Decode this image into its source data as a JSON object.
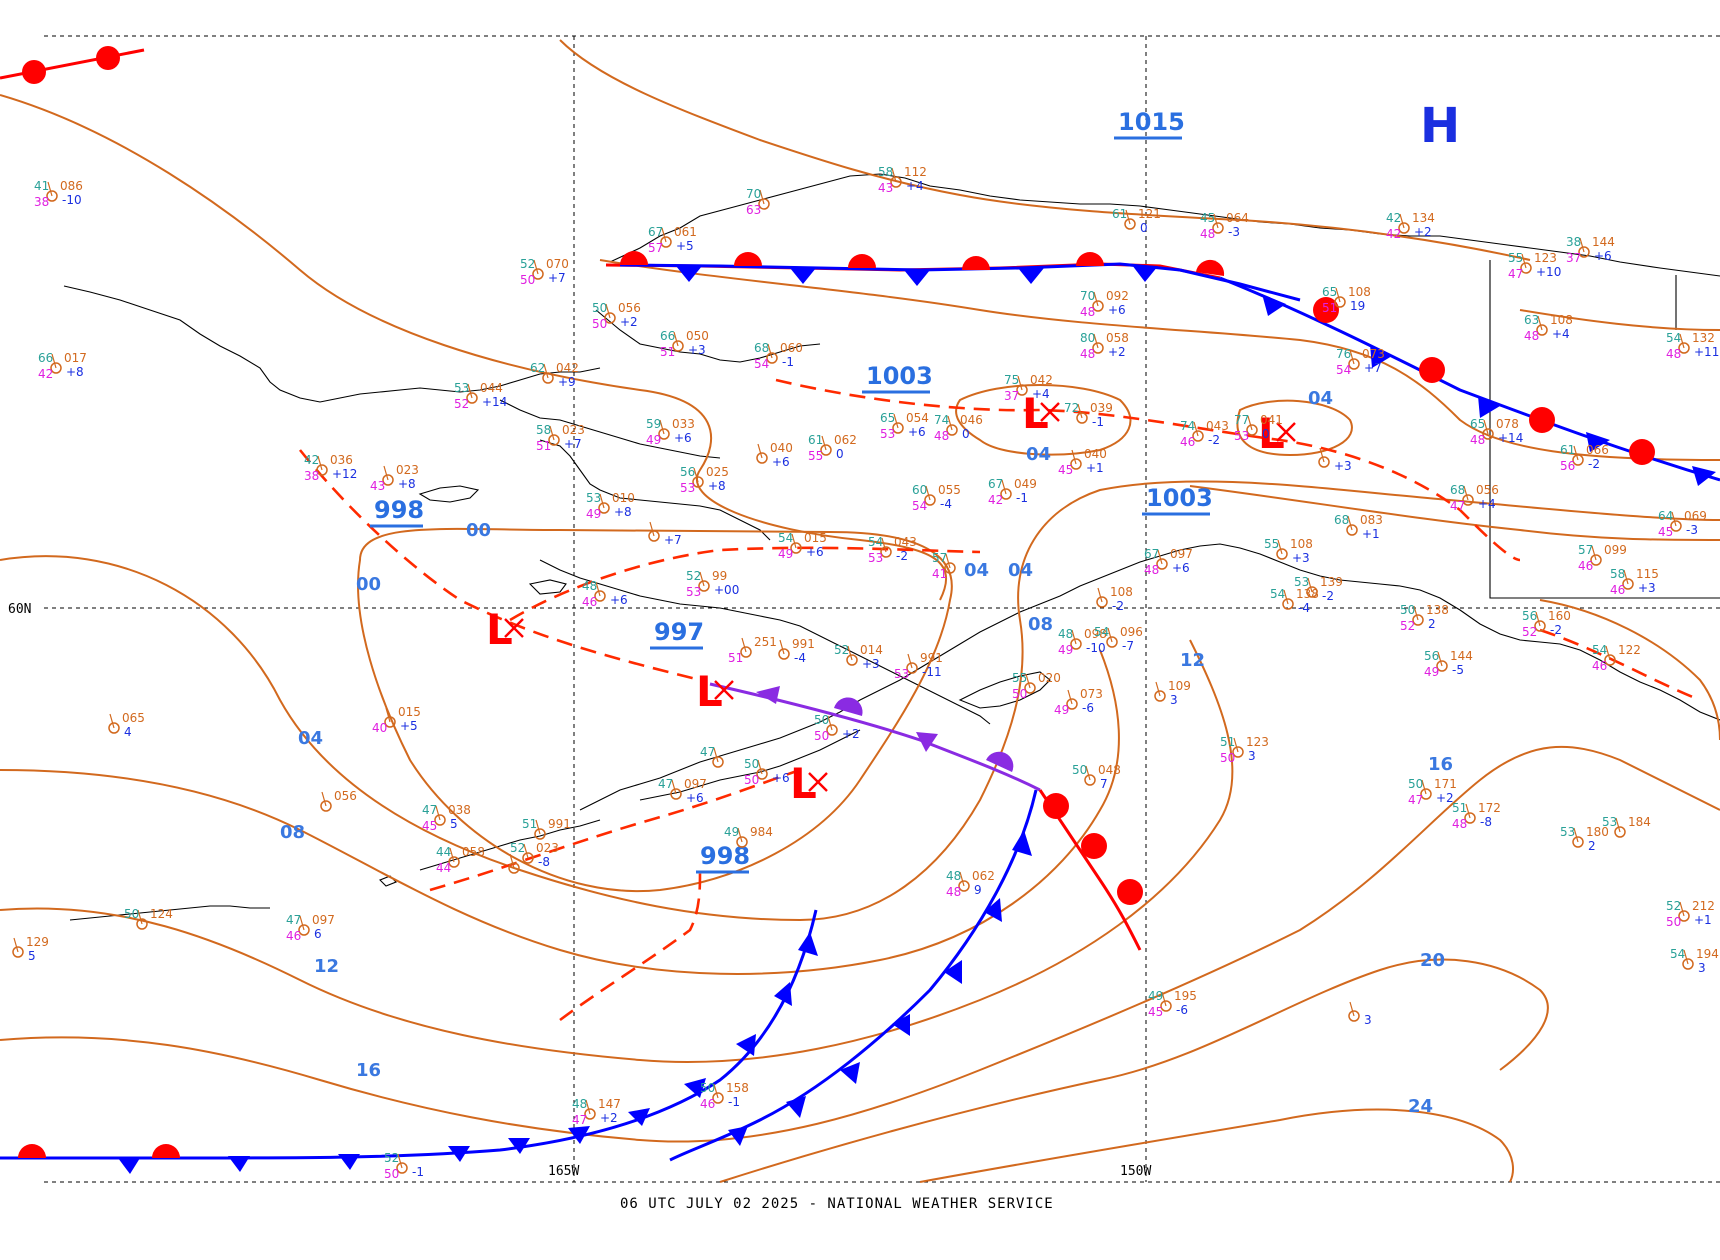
{
  "footer": "06 UTC JULY 02 2025 - NATIONAL WEATHER SERVICE",
  "axes": {
    "lat_label": "60N",
    "lon_labels": [
      "165W",
      "150W"
    ]
  },
  "pressure_centers": [
    {
      "type": "high",
      "symbol": "H"
    },
    {
      "type": "low",
      "symbol": "L",
      "pressure": "998"
    },
    {
      "type": "low",
      "symbol": "L",
      "pressure": "997"
    },
    {
      "type": "low",
      "symbol": "L",
      "pressure": "998"
    },
    {
      "type": "low",
      "symbol": "L",
      "pressure": "1003"
    },
    {
      "type": "low",
      "symbol": "L",
      "pressure": "1003"
    }
  ],
  "center_pressure_labels": [
    "1015",
    "1003",
    "998",
    "1003",
    "997",
    "998"
  ],
  "isobar_labels": [
    "00",
    "04",
    "08",
    "12",
    "16",
    "04",
    "04",
    "08",
    "12",
    "16",
    "20",
    "24",
    "04",
    "04",
    "00"
  ],
  "colors": {
    "isobar": "#d2691e",
    "cold_front": "#0000ff",
    "warm_front": "#ff0000",
    "occluded_front": "#8a2be2",
    "trough": "#ff2a00",
    "temperature": "#2aa198",
    "dewpoint": "#e020e0",
    "pressure_reading": "#d2691e",
    "tendency": "#1a2fe0"
  },
  "stations": [
    {
      "t": "41",
      "p": "086",
      "d": "38",
      "tend": "-10"
    },
    {
      "t": "66",
      "p": "017",
      "d": "42",
      "tend": "+8"
    },
    {
      "t": "52",
      "p": "070",
      "d": "50",
      "tend": "+7"
    },
    {
      "t": "67",
      "p": "061",
      "d": "57",
      "tend": "+5"
    },
    {
      "t": "70",
      "p": "",
      "d": "63",
      "tend": ""
    },
    {
      "t": "58",
      "p": "112",
      "d": "43",
      "tend": "+4"
    },
    {
      "t": "50",
      "p": "056",
      "d": "50",
      "tend": "+2"
    },
    {
      "t": "66",
      "p": "050",
      "d": "51",
      "tend": "+3"
    },
    {
      "t": "68",
      "p": "060",
      "d": "54",
      "tend": "-1"
    },
    {
      "t": "62",
      "p": "042",
      "d": "",
      "tend": "+9"
    },
    {
      "t": "53",
      "p": "044",
      "d": "52",
      "tend": "+14"
    },
    {
      "t": "58",
      "p": "023",
      "d": "51",
      "tend": "+7"
    },
    {
      "t": "59",
      "p": "033",
      "d": "49",
      "tend": "+6"
    },
    {
      "t": "42",
      "p": "036",
      "d": "38",
      "tend": "+12"
    },
    {
      "t": "",
      "p": "023",
      "d": "43",
      "tend": "+8"
    },
    {
      "t": "56",
      "p": "025",
      "d": "53",
      "tend": "+8"
    },
    {
      "t": "",
      "p": "040",
      "d": "",
      "tend": "+6"
    },
    {
      "t": "61",
      "p": "062",
      "d": "55",
      "tend": "0"
    },
    {
      "t": "65",
      "p": "054",
      "d": "53",
      "tend": "+6"
    },
    {
      "t": "74",
      "p": "046",
      "d": "48",
      "tend": "0"
    },
    {
      "t": "75",
      "p": "042",
      "d": "37",
      "tend": "+4"
    },
    {
      "t": "53",
      "p": "010",
      "d": "49",
      "tend": "+8"
    },
    {
      "t": "",
      "p": "",
      "d": "",
      "tend": "+7"
    },
    {
      "t": "60",
      "p": "055",
      "d": "54",
      "tend": "-4"
    },
    {
      "t": "67",
      "p": "049",
      "d": "42",
      "tend": "-1"
    },
    {
      "t": "70",
      "p": "092",
      "d": "48",
      "tend": "+6"
    },
    {
      "t": "80",
      "p": "058",
      "d": "48",
      "tend": "+2"
    },
    {
      "t": "61",
      "p": "121",
      "d": "",
      "tend": "0"
    },
    {
      "t": "45",
      "p": "064",
      "d": "48",
      "tend": "-3"
    },
    {
      "t": "72",
      "p": "039",
      "d": "",
      "tend": "-1"
    },
    {
      "t": "",
      "p": "040",
      "d": "45",
      "tend": "+1"
    },
    {
      "t": "74",
      "p": "043",
      "d": "46",
      "tend": "-2"
    },
    {
      "t": "77",
      "p": "041",
      "d": "53",
      "tend": "0"
    },
    {
      "t": "",
      "p": "",
      "d": "",
      "tend": "+3"
    },
    {
      "t": "42",
      "p": "134",
      "d": "42",
      "tend": "+2"
    },
    {
      "t": "65",
      "p": "108",
      "d": "51",
      "tend": "19"
    },
    {
      "t": "76",
      "p": "073",
      "d": "54",
      "tend": "+7"
    },
    {
      "t": "55",
      "p": "123",
      "d": "47",
      "tend": "+10"
    },
    {
      "t": "38",
      "p": "144",
      "d": "37",
      "tend": "+6"
    },
    {
      "t": "63",
      "p": "108",
      "d": "48",
      "tend": "+4"
    },
    {
      "t": "65",
      "p": "078",
      "d": "48",
      "tend": "+14"
    },
    {
      "t": "61",
      "p": "066",
      "d": "56",
      "tend": "-2"
    },
    {
      "t": "54",
      "p": "132",
      "d": "48",
      "tend": "+11"
    },
    {
      "t": "68",
      "p": "056",
      "d": "47",
      "tend": "+4"
    },
    {
      "t": "64",
      "p": "069",
      "d": "45",
      "tend": "-3"
    },
    {
      "t": "57",
      "p": "099",
      "d": "46",
      "tend": ""
    },
    {
      "t": "58",
      "p": "115",
      "d": "46",
      "tend": "+3"
    },
    {
      "t": "54",
      "p": "015",
      "d": "49",
      "tend": "+6"
    },
    {
      "t": "54",
      "p": "043",
      "d": "53",
      "tend": "-2"
    },
    {
      "t": "57",
      "p": "",
      "d": "41",
      "tend": ""
    },
    {
      "t": "52",
      "p": "99",
      "d": "53",
      "tend": "+00"
    },
    {
      "t": "48",
      "p": "",
      "d": "46",
      "tend": "+6"
    },
    {
      "t": "55",
      "p": "108",
      "d": "",
      "tend": "+3"
    },
    {
      "t": "68",
      "p": "083",
      "d": "",
      "tend": "+1"
    },
    {
      "t": "67",
      "p": "097",
      "d": "48",
      "tend": "+6"
    },
    {
      "t": "",
      "p": "108",
      "d": "",
      "tend": "-2"
    },
    {
      "t": "54",
      "p": "138",
      "d": "",
      "tend": "-4"
    },
    {
      "t": "53",
      "p": "139",
      "d": "",
      "tend": "-2"
    },
    {
      "t": "50",
      "p": "138",
      "d": "52",
      "tend": "2"
    },
    {
      "t": "56",
      "p": "144",
      "d": "49",
      "tend": "-5"
    },
    {
      "t": "56",
      "p": "160",
      "d": "52",
      "tend": "-2"
    },
    {
      "t": "54",
      "p": "122",
      "d": "46",
      "tend": ""
    },
    {
      "t": "52",
      "p": "014",
      "d": "",
      "tend": "+3"
    },
    {
      "t": "",
      "p": "991",
      "d": "53",
      "tend": "-11"
    },
    {
      "t": "",
      "p": "991",
      "d": "",
      "tend": "-4"
    },
    {
      "t": "",
      "p": "251",
      "d": "51",
      "tend": ""
    },
    {
      "t": "48",
      "p": "098",
      "d": "49",
      "tend": "-10"
    },
    {
      "t": "54",
      "p": "096",
      "d": "",
      "tend": "-7"
    },
    {
      "t": "55",
      "p": "020",
      "d": "50",
      "tend": ""
    },
    {
      "t": "",
      "p": "073",
      "d": "49",
      "tend": "-6"
    },
    {
      "t": "",
      "p": "109",
      "d": "",
      "tend": "3"
    },
    {
      "t": "",
      "p": "015",
      "d": "40",
      "tend": "+5"
    },
    {
      "t": "",
      "p": "065",
      "d": "",
      "tend": "4"
    },
    {
      "t": "50",
      "p": "",
      "d": "50",
      "tend": "+2"
    },
    {
      "t": "47",
      "p": "",
      "d": "",
      "tend": ""
    },
    {
      "t": "47",
      "p": "097",
      "d": "",
      "tend": "+6"
    },
    {
      "t": "50",
      "p": "",
      "d": "50",
      "tend": "+6"
    },
    {
      "t": "50",
      "p": "048",
      "d": "",
      "tend": "7"
    },
    {
      "t": "51",
      "p": "123",
      "d": "50",
      "tend": "3"
    },
    {
      "t": "50",
      "p": "171",
      "d": "47",
      "tend": "+2"
    },
    {
      "t": "51",
      "p": "172",
      "d": "48",
      "tend": "-8"
    },
    {
      "t": "53",
      "p": "184",
      "d": "",
      "tend": ""
    },
    {
      "t": "53",
      "p": "180",
      "d": "",
      "tend": "2"
    },
    {
      "t": "",
      "p": "056",
      "d": "",
      "tend": ""
    },
    {
      "t": "47",
      "p": "038",
      "d": "45",
      "tend": "5"
    },
    {
      "t": "44",
      "p": "058",
      "d": "44",
      "tend": ""
    },
    {
      "t": "51",
      "p": "991",
      "d": "",
      "tend": ""
    },
    {
      "t": "52",
      "p": "023",
      "d": "",
      "tend": "-8"
    },
    {
      "t": "",
      "p": "",
      "d": "",
      "tend": ""
    },
    {
      "t": "49",
      "p": "984",
      "d": "",
      "tend": ""
    },
    {
      "t": "48",
      "p": "062",
      "d": "48",
      "tend": "9"
    },
    {
      "t": "50",
      "p": "124",
      "d": "",
      "tend": ""
    },
    {
      "t": "47",
      "p": "097",
      "d": "46",
      "tend": "6"
    },
    {
      "t": "",
      "p": "129",
      "d": "",
      "tend": "5"
    },
    {
      "t": "49",
      "p": "195",
      "d": "45",
      "tend": "-6"
    },
    {
      "t": "",
      "p": "",
      "d": "",
      "tend": "3"
    },
    {
      "t": "52",
      "p": "212",
      "d": "50",
      "tend": "+1"
    },
    {
      "t": "54",
      "p": "194",
      "d": "",
      "tend": "3"
    },
    {
      "t": "48",
      "p": "147",
      "d": "47",
      "tend": "+2"
    },
    {
      "t": "50",
      "p": "158",
      "d": "46",
      "tend": "-1"
    },
    {
      "t": "52",
      "p": "",
      "d": "50",
      "tend": "-1"
    }
  ]
}
